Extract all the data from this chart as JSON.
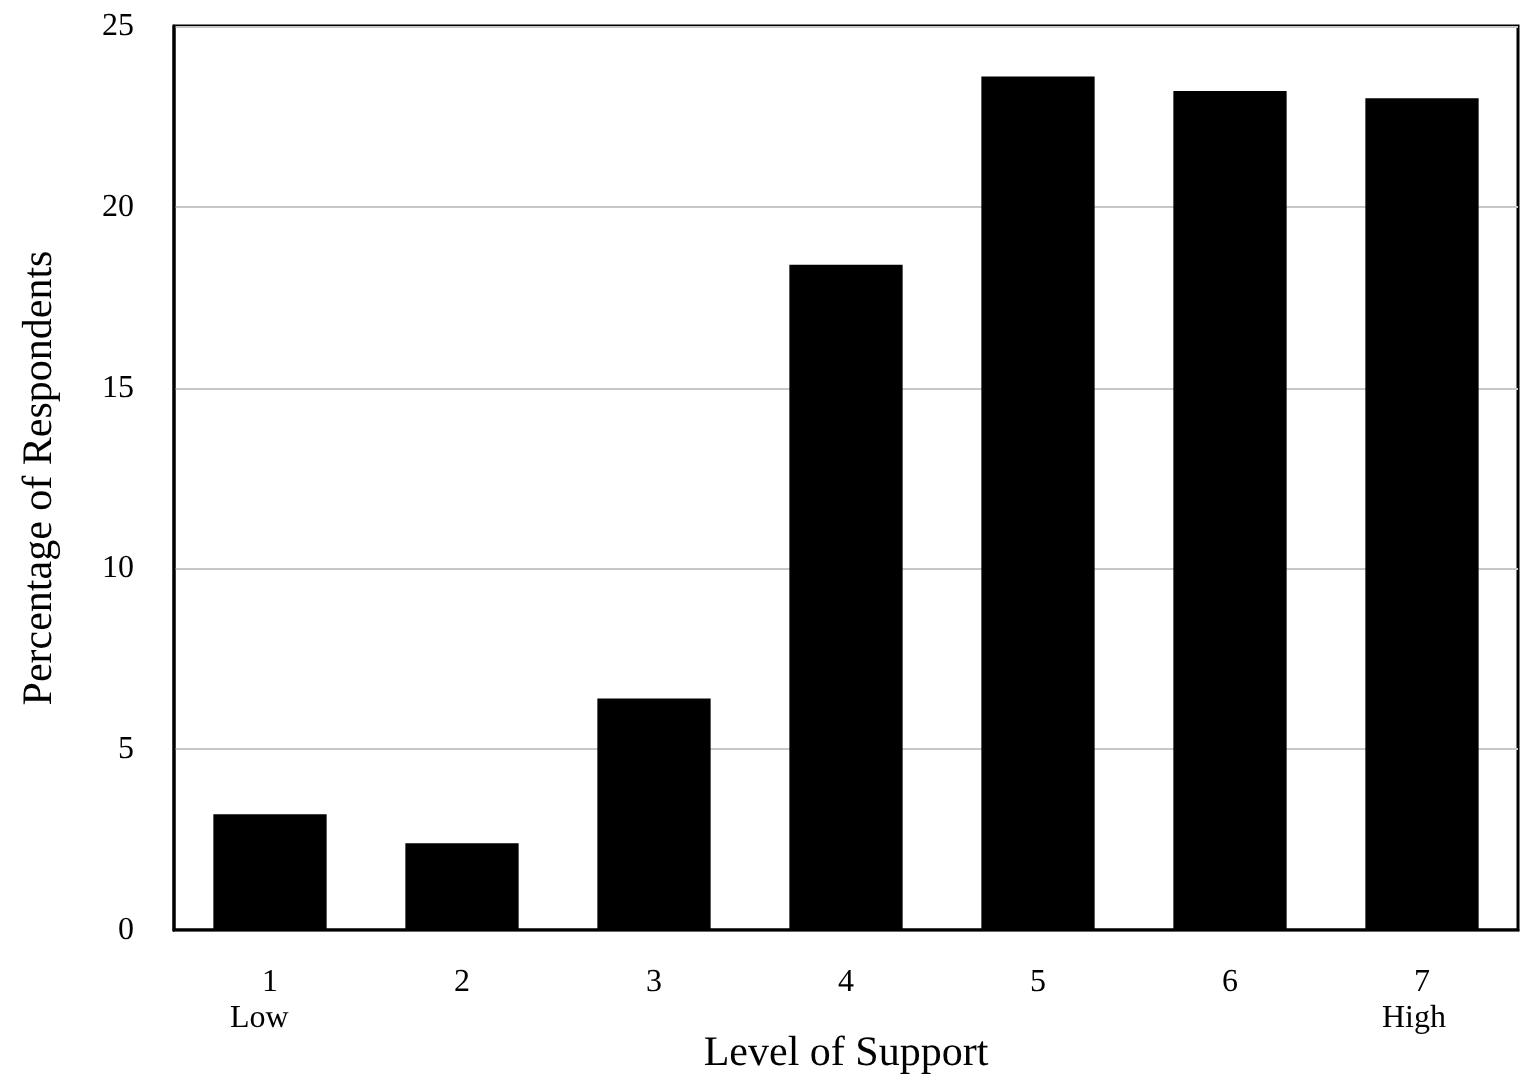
{
  "chart_data": {
    "type": "bar",
    "xlabel": "Level of Support",
    "ylabel": "Percentage of Respondents",
    "categories": [
      "1",
      "2",
      "3",
      "4",
      "5",
      "6",
      "7"
    ],
    "values": [
      3.2,
      2.4,
      6.4,
      18.4,
      23.6,
      23.2,
      23.0
    ],
    "color": "#000000",
    "ylim": [
      0,
      25
    ],
    "yticks": [
      0,
      5,
      10,
      15,
      20,
      25
    ],
    "grid": "y",
    "annotations": [
      "Low",
      "High"
    ]
  }
}
